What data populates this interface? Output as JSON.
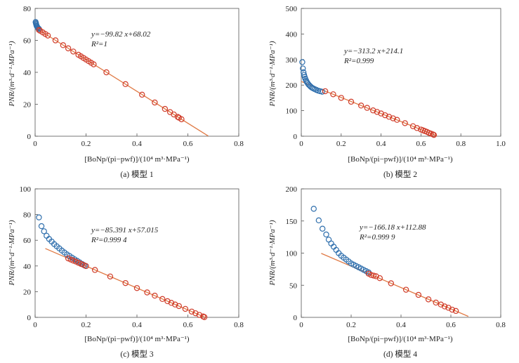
{
  "chart_data": [
    {
      "type": "scatter",
      "panel": "a",
      "caption": "(a) 模型 1",
      "ylabel": "PNR/(m³·d⁻¹·MPa⁻¹)",
      "xlabel": "[BoNp/(pi−pwf)]/(10⁴ m³·MPa⁻¹)",
      "xlim": [
        0,
        0.8
      ],
      "ylim": [
        0,
        80
      ],
      "xticks": [
        "0",
        "0.2",
        "0.4",
        "0.6",
        "0.8"
      ],
      "yticks": [
        "0",
        "20",
        "40",
        "60",
        "80"
      ],
      "equation": "y=−99.82 x+68.02",
      "r2": "R²=1",
      "fit": {
        "slope": -99.82,
        "intercept": 68.02,
        "x_start": 0.0,
        "x_end": 0.68
      },
      "series": [
        {
          "name": "blue",
          "color": "#2f6fad",
          "x": [
            0.002,
            0.003,
            0.004,
            0.005,
            0.006,
            0.008,
            0.01,
            0.012,
            0.015
          ],
          "y": [
            71.5,
            70.8,
            70.2,
            69.6,
            69.0,
            68.5,
            68.0,
            67.6,
            67.2
          ]
        },
        {
          "name": "red",
          "color": "#d03c2a",
          "x": [
            0.015,
            0.02,
            0.03,
            0.04,
            0.05,
            0.08,
            0.11,
            0.13,
            0.15,
            0.17,
            0.18,
            0.19,
            0.2,
            0.21,
            0.22,
            0.23,
            0.28,
            0.355,
            0.42,
            0.47,
            0.51,
            0.53,
            0.545,
            0.56,
            0.565,
            0.575
          ],
          "y": [
            66.5,
            66.0,
            65.0,
            64.0,
            63.0,
            60.0,
            57.0,
            55.0,
            53.0,
            51.0,
            50.0,
            49.0,
            48.0,
            47.0,
            46.0,
            45.0,
            40.0,
            32.6,
            26.0,
            21.1,
            17.1,
            15.1,
            13.6,
            12.1,
            11.6,
            10.6
          ]
        }
      ]
    },
    {
      "type": "scatter",
      "panel": "b",
      "caption": "(b) 模型 2",
      "ylabel": "PNR/(m³·d⁻¹·MPa⁻¹)",
      "xlabel": "[BoNp/(pi−pwf)]/(10⁴ m³·MPa⁻¹)",
      "xlim": [
        0,
        1.0
      ],
      "ylim": [
        0,
        500
      ],
      "xticks": [
        "0",
        "0.2",
        "0.4",
        "0.6",
        "0.8",
        "1.0"
      ],
      "yticks": [
        "0",
        "100",
        "200",
        "300",
        "400",
        "500"
      ],
      "equation": "y=−313.2 x+214.1",
      "r2": "R²=0.999",
      "fit": {
        "slope": -313.2,
        "intercept": 214.1,
        "x_start": 0.0,
        "x_end": 0.68
      },
      "series": [
        {
          "name": "blue",
          "color": "#2f6fad",
          "x": [
            0.005,
            0.008,
            0.011,
            0.014,
            0.017,
            0.02,
            0.024,
            0.028,
            0.032,
            0.037,
            0.042,
            0.047,
            0.053,
            0.06,
            0.068,
            0.076,
            0.085,
            0.095,
            0.105
          ],
          "y": [
            290,
            265,
            250,
            240,
            232,
            225,
            218,
            212,
            207,
            202,
            198,
            194,
            190,
            187,
            184,
            181,
            178,
            176,
            174
          ]
        },
        {
          "name": "red",
          "color": "#d03c2a",
          "x": [
            0.12,
            0.16,
            0.2,
            0.25,
            0.3,
            0.33,
            0.36,
            0.38,
            0.4,
            0.42,
            0.44,
            0.46,
            0.48,
            0.52,
            0.56,
            0.58,
            0.6,
            0.61,
            0.62,
            0.63,
            0.64,
            0.65,
            0.66,
            0.665
          ],
          "y": [
            176,
            164,
            150,
            135,
            120,
            111,
            101,
            95,
            89,
            82,
            76,
            70,
            64,
            51,
            39,
            32,
            26,
            23,
            20,
            17,
            13,
            10,
            7,
            5
          ]
        }
      ]
    },
    {
      "type": "scatter",
      "panel": "c",
      "caption": "(c) 模型 3",
      "ylabel": "PNR/(m³·d⁻¹·MPa⁻¹)",
      "xlabel": "[BoNp/(pi−pwf)]/(10⁴ m³·MPa⁻¹)",
      "xlim": [
        0,
        0.8
      ],
      "ylim": [
        0,
        100
      ],
      "xticks": [
        "0",
        "0.2",
        "0.4",
        "0.6",
        "0.8"
      ],
      "yticks": [
        "0",
        "20",
        "40",
        "60",
        "80",
        "100"
      ],
      "equation": "y=−85.391 x+57.015",
      "r2": "R²=0.999 4",
      "fit": {
        "slope": -85.391,
        "intercept": 57.015,
        "x_start": 0.04,
        "x_end": 0.67
      },
      "series": [
        {
          "name": "blue",
          "color": "#2f6fad",
          "x": [
            0.015,
            0.025,
            0.035,
            0.045,
            0.055,
            0.065,
            0.075,
            0.085,
            0.095,
            0.105,
            0.115,
            0.125,
            0.135,
            0.145,
            0.155,
            0.165,
            0.175,
            0.185,
            0.195
          ],
          "y": [
            77.8,
            71.0,
            67.0,
            63.5,
            61.0,
            59.0,
            57.0,
            55.3,
            53.7,
            52.0,
            50.5,
            49.0,
            47.8,
            46.5,
            45.2,
            44.0,
            42.8,
            41.5,
            40.3
          ]
        },
        {
          "name": "red",
          "color": "#d03c2a",
          "x": [
            0.13,
            0.14,
            0.15,
            0.16,
            0.17,
            0.18,
            0.19,
            0.2,
            0.235,
            0.295,
            0.355,
            0.4,
            0.44,
            0.47,
            0.5,
            0.52,
            0.535,
            0.55,
            0.565,
            0.59,
            0.615,
            0.63,
            0.645,
            0.66,
            0.665
          ],
          "y": [
            45.9,
            45.0,
            44.2,
            43.4,
            42.5,
            41.6,
            40.8,
            39.9,
            36.9,
            31.8,
            26.7,
            22.8,
            19.4,
            16.9,
            14.3,
            12.6,
            11.3,
            10.0,
            8.8,
            6.6,
            4.5,
            3.2,
            1.9,
            0.7,
            0.2
          ]
        }
      ]
    },
    {
      "type": "scatter",
      "panel": "d",
      "caption": "(d) 模型 4",
      "ylabel": "PNR/(m³·d⁻¹·MPa⁻¹)",
      "xlabel": "[BoNp/(pi−pwf)]/(10⁴ m³·MPa⁻¹)",
      "xlim": [
        0,
        0.8
      ],
      "ylim": [
        0,
        200
      ],
      "xticks": [
        "0",
        "0.2",
        "0.4",
        "0.6",
        "0.8"
      ],
      "yticks": [
        "0",
        "50",
        "100",
        "150",
        "200"
      ],
      "equation": "y=−166.18 x+112.88",
      "r2": "R²=0.999 9",
      "fit": {
        "slope": -166.18,
        "intercept": 112.88,
        "x_start": 0.08,
        "x_end": 0.67
      },
      "series": [
        {
          "name": "blue",
          "color": "#2f6fad",
          "x": [
            0.05,
            0.07,
            0.085,
            0.1,
            0.11,
            0.12,
            0.13,
            0.14,
            0.15,
            0.16,
            0.17,
            0.18,
            0.19,
            0.2,
            0.21,
            0.22,
            0.23,
            0.24,
            0.25,
            0.26,
            0.27
          ],
          "y": [
            169,
            151,
            138,
            129,
            121,
            115,
            110,
            105,
            100,
            96,
            93,
            90,
            87,
            84,
            82,
            80,
            78,
            76,
            74,
            72,
            70
          ]
        },
        {
          "name": "red",
          "color": "#d03c2a",
          "x": [
            0.27,
            0.28,
            0.29,
            0.3,
            0.315,
            0.36,
            0.42,
            0.47,
            0.51,
            0.54,
            0.56,
            0.575,
            0.59,
            0.605,
            0.62
          ],
          "y": [
            68,
            66,
            65,
            64,
            61,
            53,
            43,
            35,
            28,
            23,
            20,
            17,
            15,
            12,
            10
          ]
        }
      ]
    }
  ]
}
